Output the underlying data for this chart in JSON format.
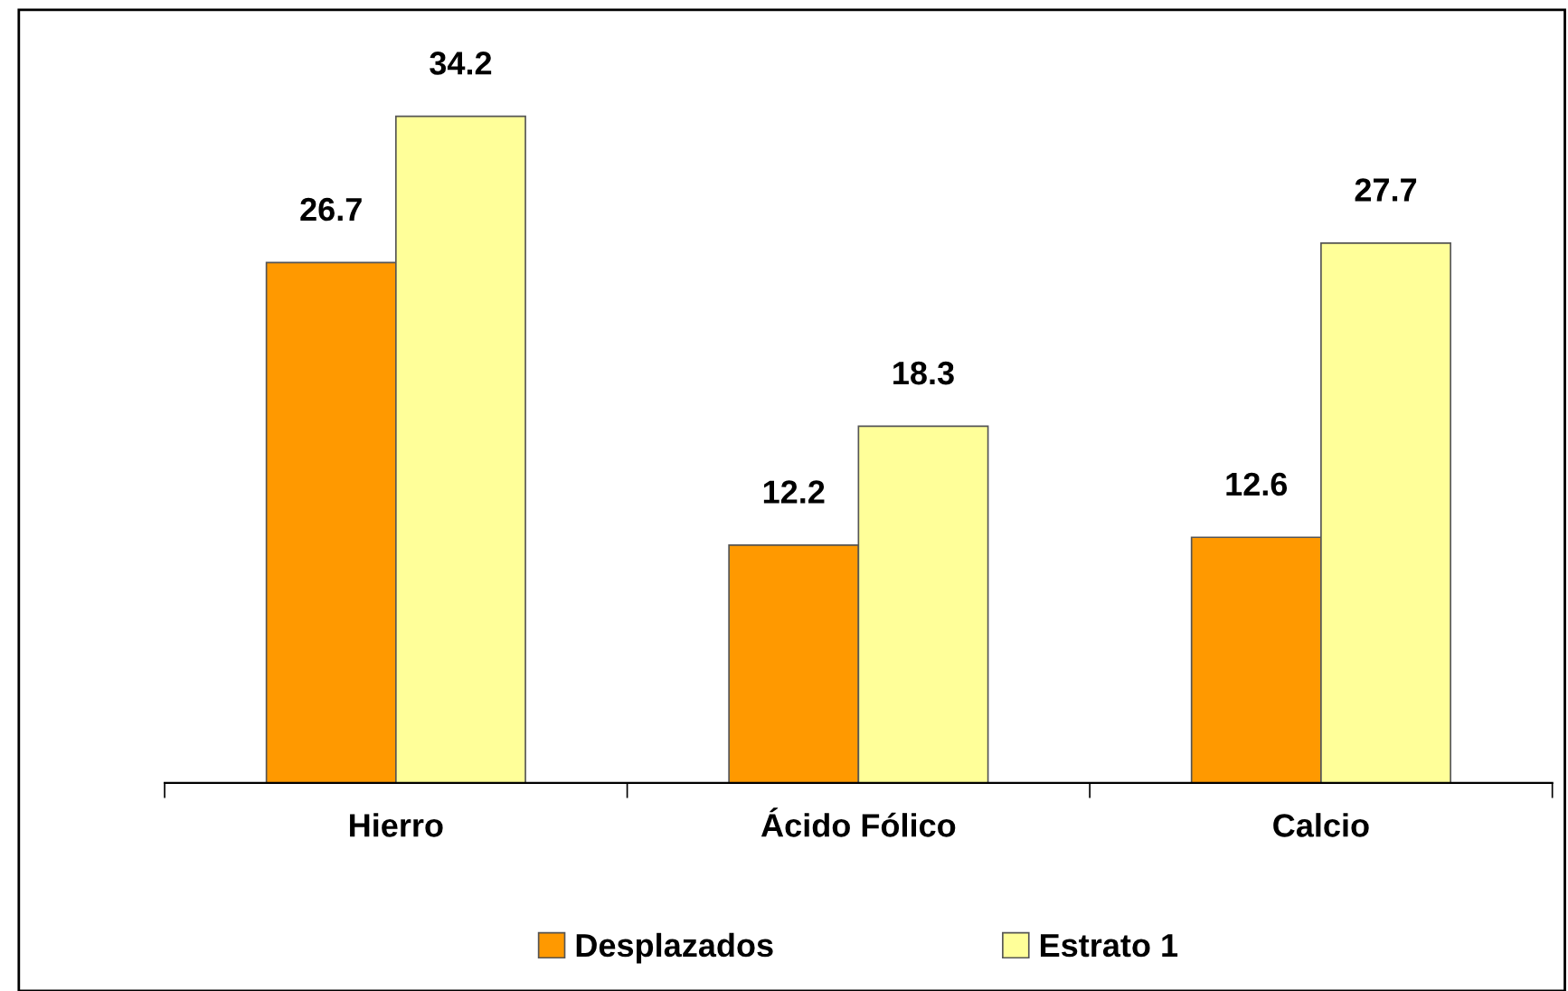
{
  "chart_data": {
    "type": "bar",
    "categories": [
      "Hierro",
      "Ácido Fólico",
      "Calcio"
    ],
    "series": [
      {
        "name": "Desplazados",
        "color": "#ff9900",
        "values": [
          26.7,
          12.2,
          12.6
        ]
      },
      {
        "name": "Estrato 1",
        "color": "#ffff99",
        "values": [
          34.2,
          18.3,
          27.7
        ]
      }
    ],
    "data_labels": true,
    "legend": "bottom",
    "grid": false
  }
}
